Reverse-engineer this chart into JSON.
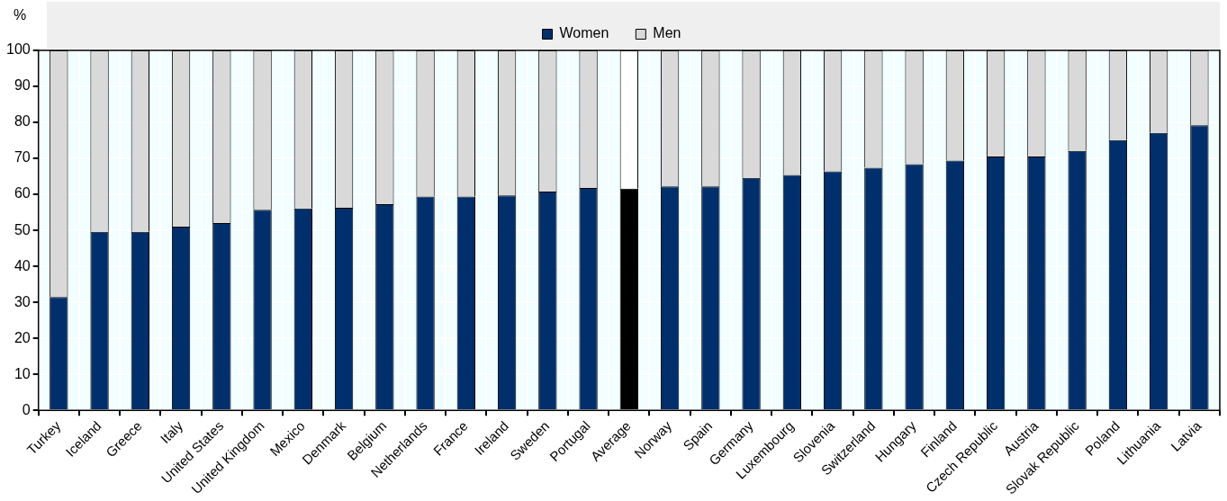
{
  "chart_data": {
    "type": "bar",
    "stacked": true,
    "ylabel": "%",
    "categories": [
      "Turkey",
      "Iceland",
      "Greece",
      "Italy",
      "United States",
      "United Kingdom",
      "Mexico",
      "Denmark",
      "Belgium",
      "Netherlands",
      "France",
      "Ireland",
      "Sweden",
      "Portugal",
      "Average",
      "Norway",
      "Spain",
      "Germany",
      "Luxembourg",
      "Slovenia",
      "Switzerland",
      "Hungary",
      "Finland",
      "Czech Republic",
      "Austria",
      "Slovak Republic",
      "Poland",
      "Lithuania",
      "Latvia"
    ],
    "series": [
      {
        "name": "Women",
        "color": "#002f6c",
        "colors": [
          "#002f6c",
          "#002f6c",
          "#002f6c",
          "#002f6c",
          "#002f6c",
          "#002f6c",
          "#002f6c",
          "#002f6c",
          "#002f6c",
          "#002f6c",
          "#002f6c",
          "#002f6c",
          "#002f6c",
          "#002f6c",
          "#000000",
          "#002f6c",
          "#002f6c",
          "#002f6c",
          "#002f6c",
          "#002f6c",
          "#002f6c",
          "#002f6c",
          "#002f6c",
          "#002f6c",
          "#002f6c",
          "#002f6c",
          "#002f6c",
          "#002f6c",
          "#002f6c"
        ],
        "values": [
          31.5,
          49.6,
          49.6,
          51,
          52,
          55.7,
          56.1,
          56.3,
          57.3,
          59.4,
          59.4,
          59.7,
          60.8,
          61.8,
          61.6,
          62.2,
          62.2,
          64.6,
          65.4,
          66.4,
          67.4,
          68.4,
          69.4,
          70.5,
          70.5,
          72.1,
          75.1,
          77.1,
          79.2
        ]
      },
      {
        "name": "Men",
        "color": "#d9d9d9",
        "colors": [
          "#d9d9d9",
          "#d9d9d9",
          "#d9d9d9",
          "#d9d9d9",
          "#d9d9d9",
          "#d9d9d9",
          "#d9d9d9",
          "#d9d9d9",
          "#d9d9d9",
          "#d9d9d9",
          "#d9d9d9",
          "#d9d9d9",
          "#d9d9d9",
          "#d9d9d9",
          "#ffffff",
          "#d9d9d9",
          "#d9d9d9",
          "#d9d9d9",
          "#d9d9d9",
          "#d9d9d9",
          "#d9d9d9",
          "#d9d9d9",
          "#d9d9d9",
          "#d9d9d9",
          "#d9d9d9",
          "#d9d9d9",
          "#d9d9d9",
          "#d9d9d9",
          "#d9d9d9"
        ],
        "values": [
          68.5,
          50.4,
          50.4,
          49,
          48,
          44.3,
          43.9,
          43.7,
          42.7,
          40.6,
          40.6,
          40.3,
          39.2,
          38.2,
          38.4,
          37.8,
          37.8,
          35.4,
          34.6,
          33.6,
          32.6,
          31.6,
          30.6,
          29.5,
          29.5,
          27.9,
          24.9,
          22.9,
          20.8
        ]
      }
    ],
    "ylim": [
      0,
      100
    ],
    "yticks": [
      0,
      10,
      20,
      30,
      40,
      50,
      60,
      70,
      80,
      90,
      100
    ],
    "grid": true,
    "legend": "top"
  }
}
